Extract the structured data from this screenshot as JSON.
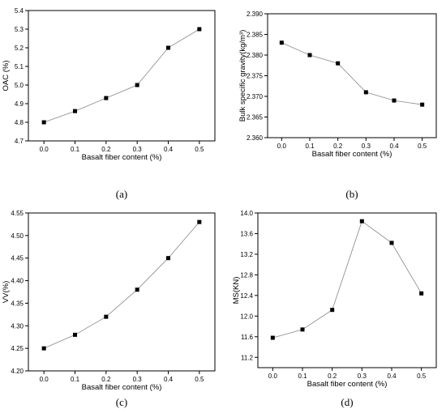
{
  "chart_data": [
    {
      "type": "line",
      "panel_label": "(a)",
      "xlabel": "Basalt fiber content (%)",
      "ylabel": "OAC (%)",
      "x": [
        0.0,
        0.1,
        0.2,
        0.3,
        0.4,
        0.5
      ],
      "values": [
        4.8,
        4.86,
        4.93,
        5.0,
        5.2,
        5.3
      ],
      "xlim": [
        -0.05,
        0.55
      ],
      "ylim": [
        4.7,
        5.4
      ],
      "xticks": [
        "0.0",
        "0.1",
        "0.2",
        "0.3",
        "0.4",
        "0.5"
      ],
      "yticks": [
        "4.7",
        "4.8",
        "4.9",
        "5.0",
        "5.1",
        "5.2",
        "5.3",
        "5.4"
      ],
      "grid": false
    },
    {
      "type": "line",
      "panel_label": "(b)",
      "xlabel": "Basalt fiber content (%)",
      "ylabel": "Bulk specific gravity(kg/m³)",
      "x": [
        0.0,
        0.1,
        0.2,
        0.3,
        0.4,
        0.5
      ],
      "values": [
        2.383,
        2.38,
        2.378,
        2.371,
        2.369,
        2.368
      ],
      "xlim": [
        -0.05,
        0.55
      ],
      "ylim": [
        2.36,
        2.39
      ],
      "xticks": [
        "0.0",
        "0.1",
        "0.2",
        "0.3",
        "0.4",
        "0.5"
      ],
      "yticks": [
        "2.360",
        "2.365",
        "2.370",
        "2.375",
        "2.380",
        "2.385",
        "2.390"
      ],
      "grid": false
    },
    {
      "type": "line",
      "panel_label": "(c)",
      "xlabel": "Basalt fiber content (%)",
      "ylabel": "VV(%)",
      "x": [
        0.0,
        0.1,
        0.2,
        0.3,
        0.4,
        0.5
      ],
      "values": [
        4.25,
        4.28,
        4.32,
        4.38,
        4.45,
        4.53
      ],
      "xlim": [
        -0.05,
        0.55
      ],
      "ylim": [
        4.2,
        4.55
      ],
      "xticks": [
        "0.0",
        "0.1",
        "0.2",
        "0.3",
        "0.4",
        "0.5"
      ],
      "yticks": [
        "4.20",
        "4.25",
        "4.30",
        "4.35",
        "4.40",
        "4.45",
        "4.50",
        "4.55"
      ],
      "grid": false
    },
    {
      "type": "line",
      "panel_label": "(d)",
      "xlabel": "Basalt fiber content (%)",
      "ylabel": "MS(KN)",
      "x": [
        0.0,
        0.1,
        0.2,
        0.3,
        0.4,
        0.5
      ],
      "values": [
        11.58,
        11.74,
        12.12,
        13.84,
        13.42,
        12.44
      ],
      "xlim": [
        -0.05,
        0.55
      ],
      "ylim": [
        11.0,
        14.0
      ],
      "xticks": [
        "0.0",
        "0.1",
        "0.2",
        "0.3",
        "0.4",
        "0.5"
      ],
      "yticks": [
        "11.2",
        "11.6",
        "12.0",
        "12.4",
        "12.8",
        "13.2",
        "13.6",
        "14.0"
      ],
      "grid": false
    }
  ]
}
